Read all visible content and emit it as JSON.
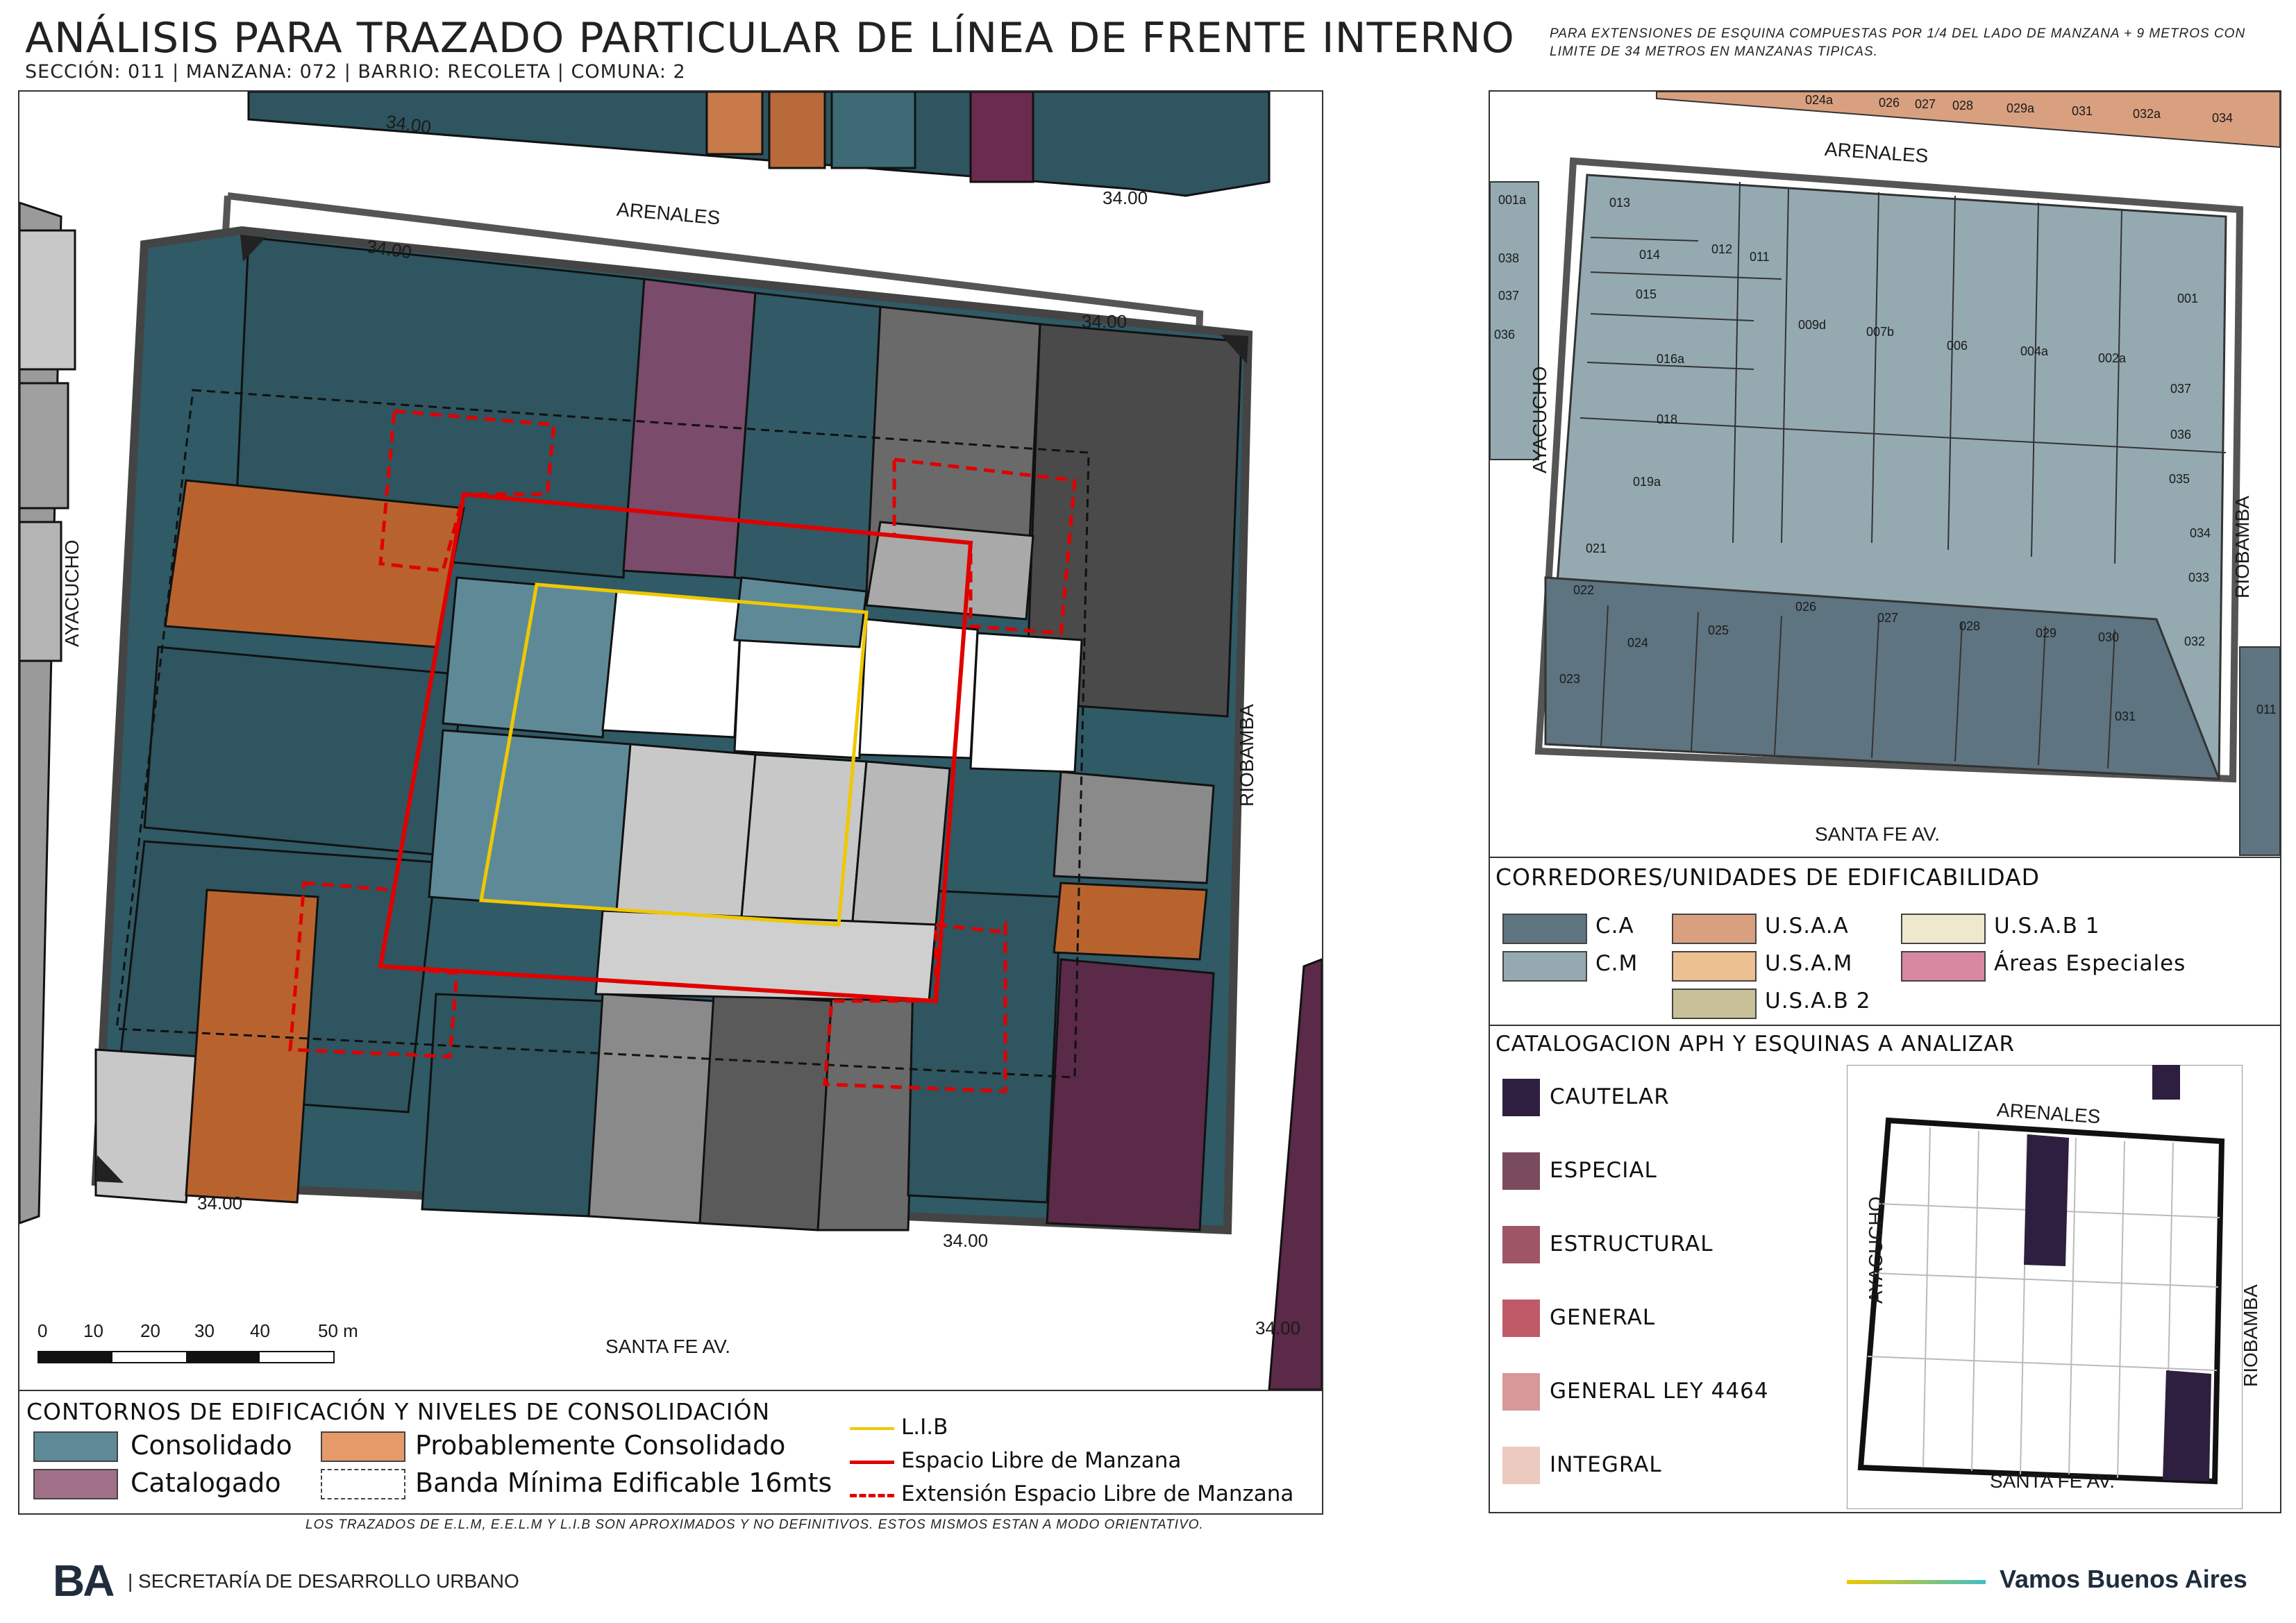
{
  "header": {
    "title": "ANÁLISIS PARA TRAZADO PARTICULAR DE LÍNEA DE FRENTE INTERNO",
    "subtitle": "SECCIÓN: 011 |  MANZANA: 072 | BARRIO: RECOLETA | COMUNA: 2",
    "note": "PARA EXTENSIONES DE ESQUINA COMPUESTAS POR 1/4 DEL LADO DE MANZANA + 9 METROS CON LIMITE DE 34 METROS EN MANZANAS TIPICAS."
  },
  "main_map": {
    "streets": {
      "north": "ARENALES",
      "south": "SANTA FE AV.",
      "west": "AYACUCHO",
      "east": "RIOBAMBA"
    },
    "dimension_label": "34.00",
    "scale": {
      "ticks": [
        "0",
        "10",
        "20",
        "30",
        "40"
      ],
      "last": "50 m"
    }
  },
  "legend_main": {
    "heading": "CONTORNOS DE EDIFICACIÓN Y NIVELES DE CONSOLIDACIÓN",
    "items": [
      {
        "label": "Consolidado",
        "color": "#5e8a98"
      },
      {
        "label": "Probablemente Consolidado",
        "color": "#e69a6a"
      },
      {
        "label": "Catalogado",
        "color": "#a07088"
      },
      {
        "label": "Banda Mínima Edificable 16mts"
      }
    ],
    "lines": [
      {
        "label": "L.I.B",
        "color": "#f0c800"
      },
      {
        "label": "Espacio Libre de Manzana",
        "color": "#e00000"
      },
      {
        "label": "Extensión Espacio Libre de Manzana",
        "color": "#e00000"
      }
    ]
  },
  "parcel_map": {
    "streets": {
      "north": "ARENALES",
      "south": "SANTA FE AV.",
      "west": "AYACUCHO",
      "east": "RIOBAMBA"
    },
    "top_labels": [
      "024a",
      "026",
      "027",
      "028",
      "029a",
      "031",
      "032a",
      "034"
    ],
    "left_labels": [
      "001a",
      "038",
      "037",
      "036"
    ],
    "right_label": "011",
    "parcels": [
      "013",
      "014",
      "015",
      "012",
      "011",
      "016a",
      "009d",
      "007b",
      "006",
      "004a",
      "002a",
      "001",
      "037",
      "036",
      "035",
      "018",
      "019a",
      "021",
      "022",
      "023",
      "024",
      "025",
      "026",
      "027",
      "028",
      "029",
      "030",
      "034",
      "033",
      "032",
      "031"
    ]
  },
  "legend_corridors": {
    "heading": "CORREDORES/UNIDADES DE EDIFICABILIDAD",
    "items": [
      {
        "label": "C.A",
        "color": "#5e7480"
      },
      {
        "label": "C.M",
        "color": "#94aab0"
      },
      {
        "label": "U.S.A.A",
        "color": "#d9a080"
      },
      {
        "label": "U.S.A.M",
        "color": "#ecc090"
      },
      {
        "label": "U.S.A.B 2",
        "color": "#c8c098"
      },
      {
        "label": "U.S.A.B 1",
        "color": "#eee8cc"
      },
      {
        "label": "Áreas Especiales",
        "color": "#d888a0"
      }
    ]
  },
  "legend_catalog": {
    "heading": "CATALOGACION APH Y ESQUINAS A ANALIZAR",
    "items": [
      {
        "label": "CAUTELAR",
        "color": "#2e1f40"
      },
      {
        "label": "ESPECIAL",
        "color": "#7a4b5e"
      },
      {
        "label": "ESTRUCTURAL",
        "color": "#9e5565"
      },
      {
        "label": "GENERAL",
        "color": "#c05a68"
      },
      {
        "label": "GENERAL LEY 4464",
        "color": "#d89898"
      },
      {
        "label": "INTEGRAL",
        "color": "#eccac0"
      }
    ],
    "inset_streets": {
      "north": "ARENALES",
      "south": "SANTA FE AV.",
      "west": "AYACUCHO",
      "east": "RIOBAMBA"
    }
  },
  "footer": {
    "disclaimer": "LOS TRAZADOS DE E.L.M, E.E.L.M Y L.I.B SON APROXIMADOS Y NO DEFINITIVOS. ESTOS MISMOS ESTAN A MODO ORIENTATIVO.",
    "brand_logo": "BA",
    "brand_text": "| SECRETARÍA DE DESARROLLO URBANO",
    "slogan": "Vamos Buenos Aires"
  }
}
